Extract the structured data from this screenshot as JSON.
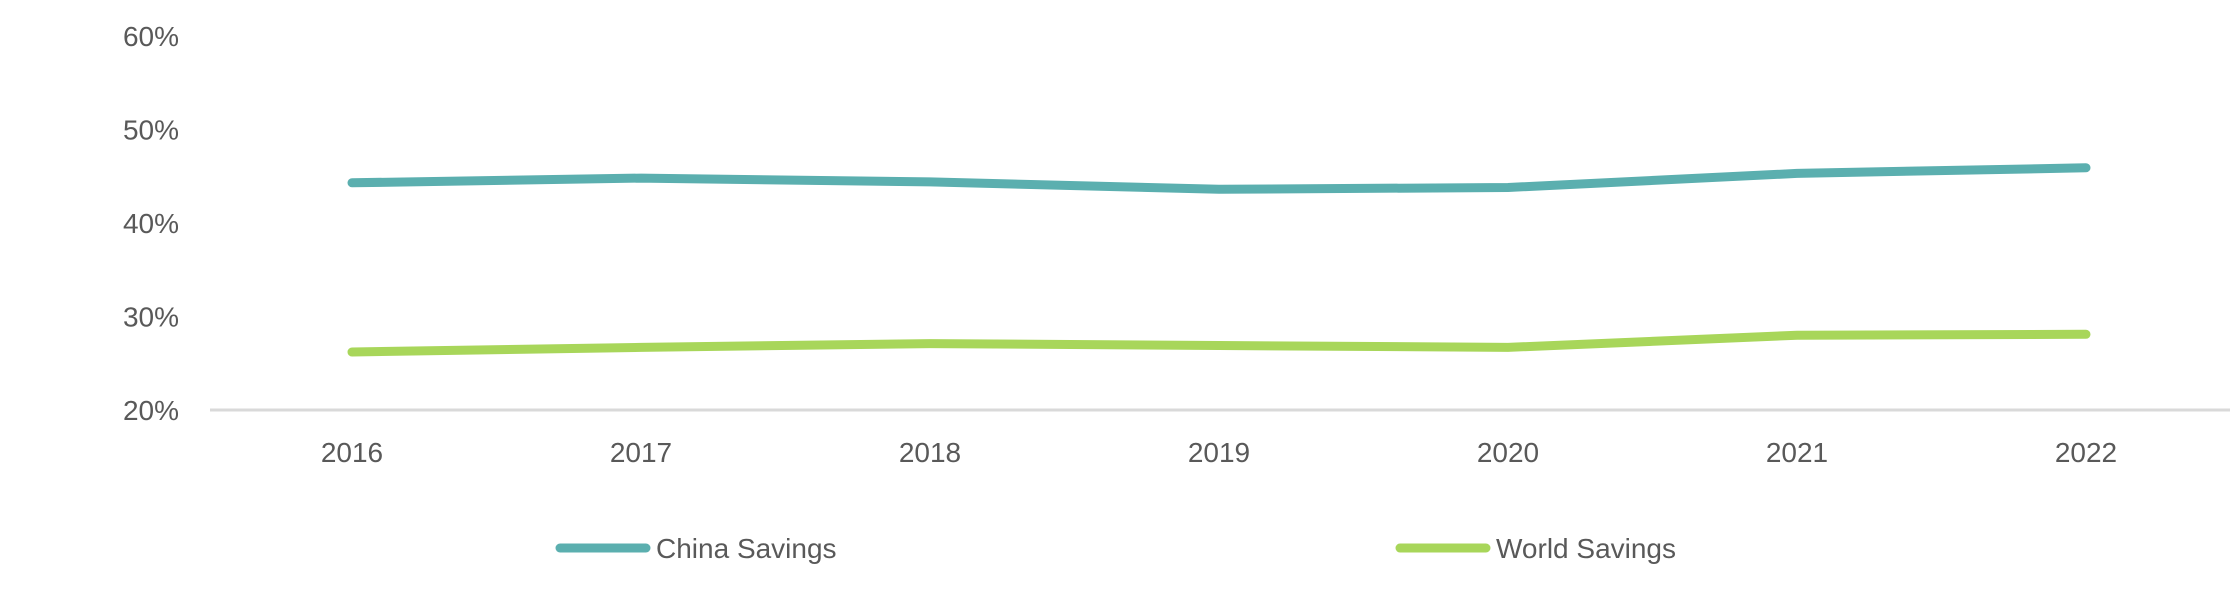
{
  "chart_data": {
    "type": "line",
    "title": "",
    "xlabel": "",
    "ylabel": "",
    "categories": [
      "2016",
      "2017",
      "2018",
      "2019",
      "2020",
      "2021",
      "2022"
    ],
    "series": [
      {
        "name": "China Savings",
        "color": "#5BAFAF",
        "values": [
          44.3,
          44.8,
          44.4,
          43.6,
          43.8,
          45.3,
          45.9
        ]
      },
      {
        "name": "World Savings",
        "color": "#A8D65A",
        "values": [
          26.2,
          26.7,
          27.1,
          26.9,
          26.7,
          28.0,
          28.1
        ]
      }
    ],
    "yticks": [
      20,
      30,
      40,
      50,
      60
    ],
    "ytick_labels": [
      "20%",
      "30%",
      "40%",
      "50%",
      "60%"
    ],
    "ylim": [
      20,
      60
    ],
    "grid": false,
    "legend_position": "bottom"
  }
}
